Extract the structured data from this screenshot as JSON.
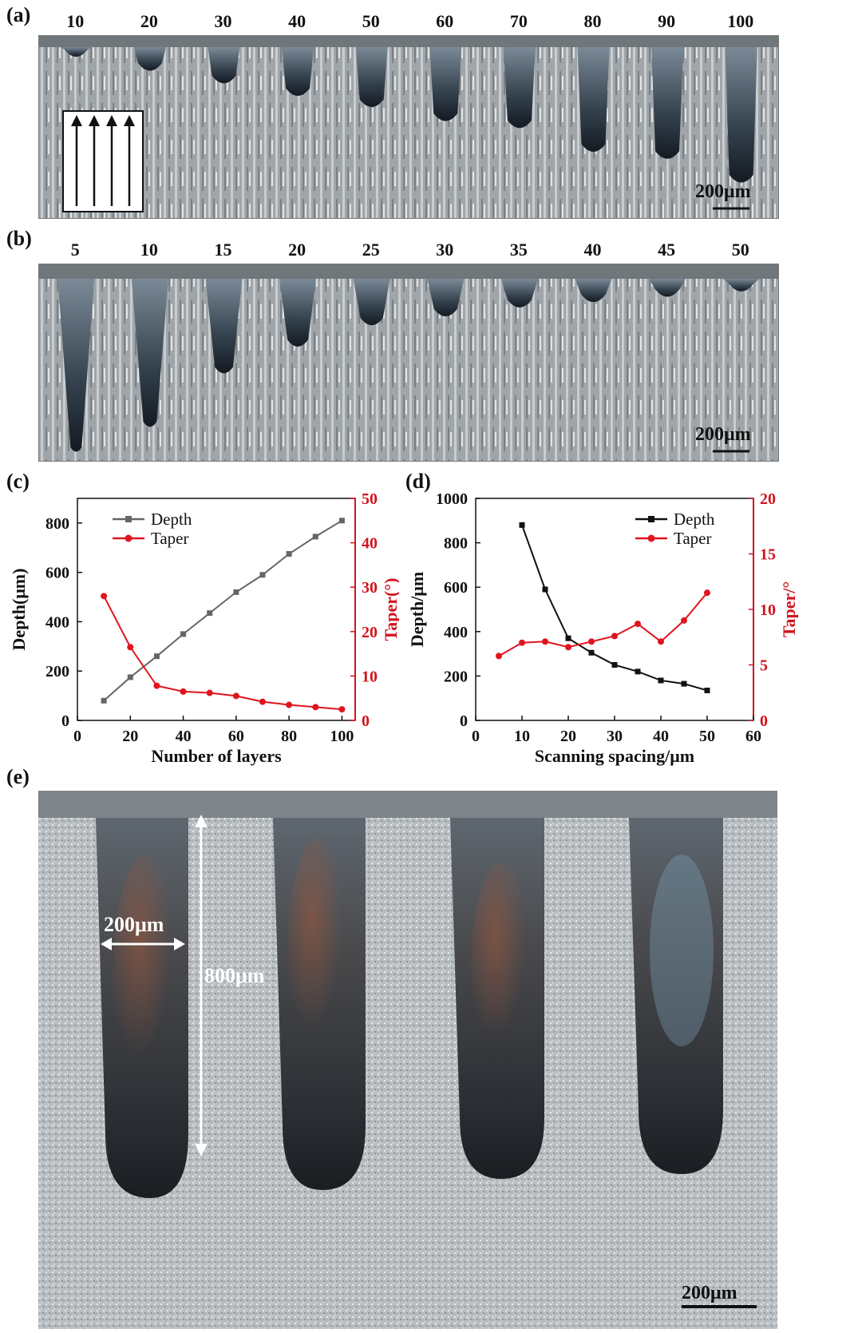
{
  "panels": {
    "a": {
      "label": "(a)",
      "numbers": [
        "10",
        "20",
        "30",
        "40",
        "50",
        "60",
        "70",
        "80",
        "90",
        "100"
      ],
      "depths": [
        0.1,
        0.2,
        0.29,
        0.38,
        0.46,
        0.56,
        0.61,
        0.78,
        0.83,
        1.0
      ],
      "scalebar": "200μm"
    },
    "b": {
      "label": "(b)",
      "numbers": [
        "5",
        "10",
        "15",
        "20",
        "25",
        "30",
        "35",
        "40",
        "45",
        "50"
      ],
      "depths": [
        1.0,
        0.86,
        0.56,
        0.41,
        0.29,
        0.24,
        0.19,
        0.16,
        0.13,
        0.1
      ],
      "scalebar": "200μm"
    },
    "c": {
      "label": "(c)"
    },
    "d": {
      "label": "(d)"
    },
    "e": {
      "label": "(e)",
      "width_label": "200μm",
      "depth_label": "800μm",
      "scalebar": "200μm"
    }
  },
  "chart_data": [
    {
      "panel": "(c)",
      "type": "line",
      "xlabel": "Number of layers",
      "ylabel": "Depth(μm)",
      "y2label": "Taper(°)",
      "xlim": [
        0,
        105
      ],
      "ylim": [
        0,
        900
      ],
      "y2lim": [
        0,
        50
      ],
      "xticks": [
        "0",
        "20",
        "40",
        "60",
        "80",
        "100"
      ],
      "yticks": [
        "0",
        "200",
        "400",
        "600",
        "800"
      ],
      "y2ticks": [
        "0",
        "10",
        "20",
        "30",
        "40",
        "50"
      ],
      "x": [
        10,
        20,
        30,
        40,
        50,
        60,
        70,
        80,
        90,
        100
      ],
      "series": [
        {
          "name": "Depth",
          "axis": "left",
          "color": "#666666",
          "marker": "square",
          "values": [
            80,
            175,
            260,
            350,
            435,
            520,
            590,
            675,
            745,
            810
          ]
        },
        {
          "name": "Taper",
          "axis": "right",
          "color": "#e0141e",
          "marker": "circle",
          "values": [
            28,
            16.5,
            7.8,
            6.5,
            6.2,
            5.5,
            4.2,
            3.5,
            3.0,
            2.5
          ]
        }
      ],
      "legend": "top-left"
    },
    {
      "panel": "(d)",
      "type": "line",
      "xlabel": "Scanning spacing/μm",
      "ylabel": "Depth/μm",
      "y2label": "Taper/°",
      "xlim": [
        0,
        60
      ],
      "ylim": [
        0,
        1000
      ],
      "y2lim": [
        0,
        20
      ],
      "xticks": [
        "0",
        "10",
        "20",
        "30",
        "40",
        "50",
        "60"
      ],
      "yticks": [
        "0",
        "200",
        "400",
        "600",
        "800",
        "1000"
      ],
      "y2ticks": [
        "0",
        "5",
        "10",
        "15",
        "20"
      ],
      "series": [
        {
          "name": "Depth",
          "axis": "left",
          "color": "#111111",
          "marker": "square",
          "x": [
            10,
            15,
            20,
            25,
            30,
            35,
            40,
            45,
            50
          ],
          "values": [
            880,
            590,
            370,
            305,
            250,
            220,
            180,
            165,
            135
          ]
        },
        {
          "name": "Taper",
          "axis": "right",
          "color": "#e0141e",
          "marker": "circle",
          "x": [
            5,
            10,
            15,
            20,
            25,
            30,
            35,
            40,
            45,
            50
          ],
          "values": [
            5.8,
            7.0,
            7.1,
            6.6,
            7.1,
            7.6,
            8.7,
            7.1,
            9.0,
            11.5
          ]
        }
      ],
      "legend": "top-right"
    }
  ]
}
